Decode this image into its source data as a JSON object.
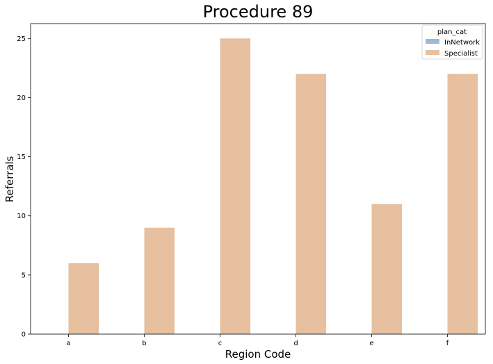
{
  "chart_data": {
    "type": "bar",
    "title": "Procedure 89",
    "xlabel": "Region Code",
    "ylabel": "Referrals",
    "categories": [
      "a",
      "b",
      "c",
      "d",
      "e",
      "f"
    ],
    "series": [
      {
        "name": "InNetwork",
        "values": [
          0,
          0,
          0,
          0,
          0,
          0
        ],
        "color": "#9db9d3"
      },
      {
        "name": "Specialist",
        "values": [
          6,
          9,
          25,
          22,
          11,
          22
        ],
        "color": "#e6c09f"
      }
    ],
    "yticks": [
      "0",
      "5",
      "10",
      "15",
      "20",
      "25"
    ],
    "ylim": [
      0,
      26.25
    ],
    "grid": false,
    "legend": {
      "title": "plan_cat",
      "position": "top-right"
    }
  }
}
